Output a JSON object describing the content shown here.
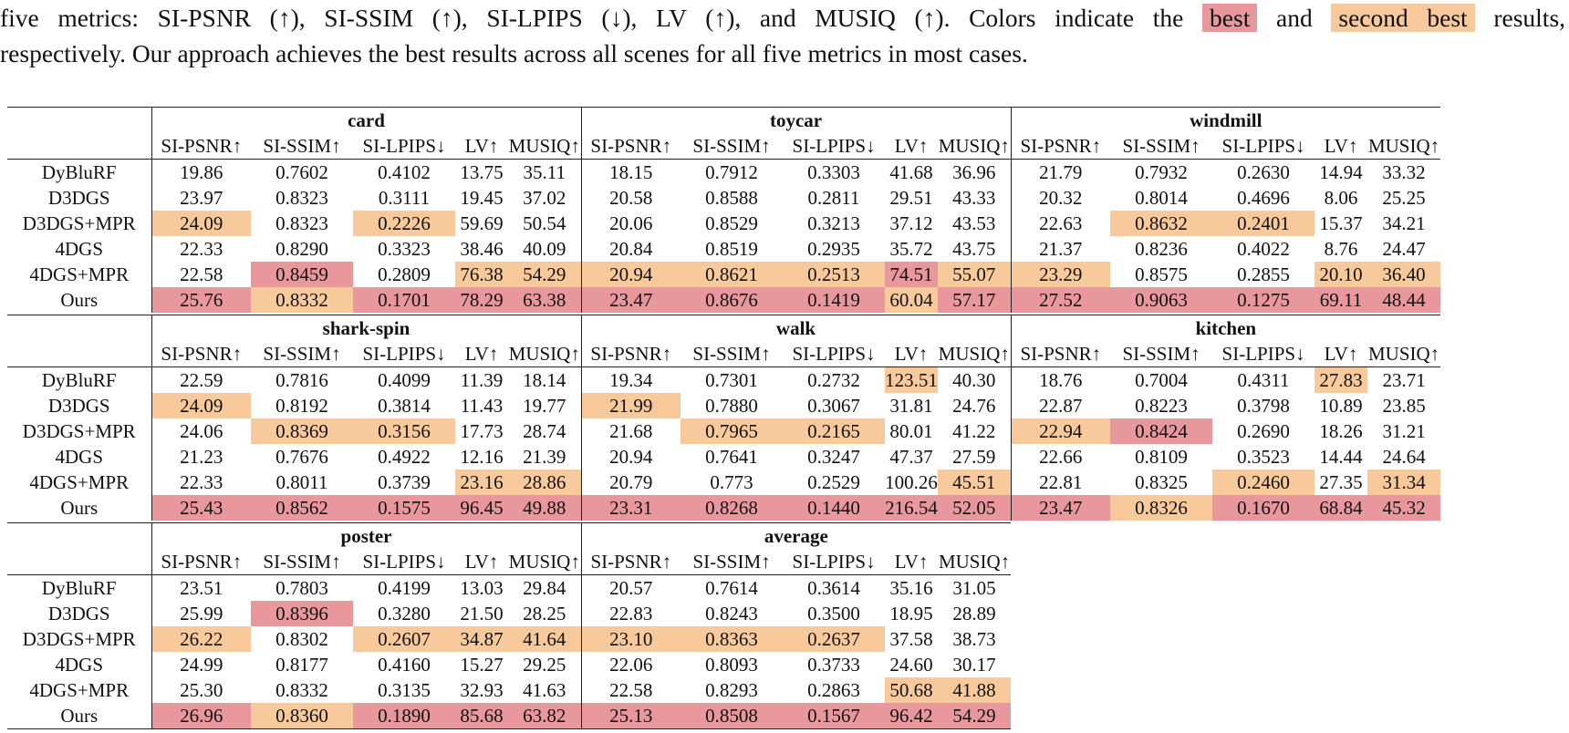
{
  "caption": {
    "line1_pre": "five metrics: SI-PSNR (↑), SI-SSIM (↑), SI-LPIPS (↓), LV (↑), and MUSIQ (↑). Colors indicate the",
    "best_label": "best",
    "and_word": "and",
    "second_label": "second best",
    "line1_post": "results,",
    "line2": "respectively. Our approach achieves the best results across all scenes for all five metrics in most cases."
  },
  "metrics": [
    "SI-PSNR↑",
    "SI-SSIM↑",
    "SI-LPIPS↓",
    "LV↑",
    "MUSIQ↑"
  ],
  "methods": [
    "DyBluRF",
    "D3DGS",
    "D3DGS+MPR",
    "4DGS",
    "4DGS+MPR",
    "Ours"
  ],
  "colors": {
    "best": "#e8979d",
    "second": "#f8c99a"
  },
  "blocks": [
    {
      "scenes": [
        {
          "name": "card",
          "rows": [
            [
              "19.86",
              "0.7602",
              "0.4102",
              "13.75",
              "35.11"
            ],
            [
              "23.97",
              "0.8323",
              "0.3111",
              "19.45",
              "37.02"
            ],
            [
              "24.09",
              "0.8323",
              "0.2226",
              "59.69",
              "50.54"
            ],
            [
              "22.33",
              "0.8290",
              "0.3323",
              "38.46",
              "40.09"
            ],
            [
              "22.58",
              "0.8459",
              "0.2809",
              "76.38",
              "54.29"
            ],
            [
              "25.76",
              "0.8332",
              "0.1701",
              "78.29",
              "63.38"
            ]
          ],
          "hl": [
            [
              "",
              "",
              "",
              "",
              ""
            ],
            [
              "",
              "",
              "",
              "",
              ""
            ],
            [
              "s",
              "",
              "s",
              "",
              ""
            ],
            [
              "",
              "",
              "",
              "",
              ""
            ],
            [
              "",
              "b",
              "",
              "s",
              "s"
            ],
            [
              "b",
              "s",
              "b",
              "b",
              "b"
            ]
          ]
        },
        {
          "name": "toycar",
          "rows": [
            [
              "18.15",
              "0.7912",
              "0.3303",
              "41.68",
              "36.96"
            ],
            [
              "20.58",
              "0.8588",
              "0.2811",
              "29.51",
              "43.33"
            ],
            [
              "20.06",
              "0.8529",
              "0.3213",
              "37.12",
              "43.53"
            ],
            [
              "20.84",
              "0.8519",
              "0.2935",
              "35.72",
              "43.75"
            ],
            [
              "20.94",
              "0.8621",
              "0.2513",
              "74.51",
              "55.07"
            ],
            [
              "23.47",
              "0.8676",
              "0.1419",
              "60.04",
              "57.17"
            ]
          ],
          "hl": [
            [
              "",
              "",
              "",
              "",
              ""
            ],
            [
              "",
              "",
              "",
              "",
              ""
            ],
            [
              "",
              "",
              "",
              "",
              ""
            ],
            [
              "",
              "",
              "",
              "",
              ""
            ],
            [
              "s",
              "s",
              "s",
              "b",
              "s"
            ],
            [
              "b",
              "b",
              "b",
              "s",
              "b"
            ]
          ]
        },
        {
          "name": "windmill",
          "rows": [
            [
              "21.79",
              "0.7932",
              "0.2630",
              "14.94",
              "33.32"
            ],
            [
              "20.32",
              "0.8014",
              "0.4696",
              "8.06",
              "25.25"
            ],
            [
              "22.63",
              "0.8632",
              "0.2401",
              "15.37",
              "34.21"
            ],
            [
              "21.37",
              "0.8236",
              "0.4022",
              "8.76",
              "24.47"
            ],
            [
              "23.29",
              "0.8575",
              "0.2855",
              "20.10",
              "36.40"
            ],
            [
              "27.52",
              "0.9063",
              "0.1275",
              "69.11",
              "48.44"
            ]
          ],
          "hl": [
            [
              "",
              "",
              "",
              "",
              ""
            ],
            [
              "",
              "",
              "",
              "",
              ""
            ],
            [
              "",
              "s",
              "s",
              "",
              ""
            ],
            [
              "",
              "",
              "",
              "",
              ""
            ],
            [
              "s",
              "",
              "",
              "s",
              "s"
            ],
            [
              "b",
              "b",
              "b",
              "b",
              "b"
            ]
          ]
        }
      ]
    },
    {
      "scenes": [
        {
          "name": "shark-spin",
          "rows": [
            [
              "22.59",
              "0.7816",
              "0.4099",
              "11.39",
              "18.14"
            ],
            [
              "24.09",
              "0.8192",
              "0.3814",
              "11.43",
              "19.77"
            ],
            [
              "24.06",
              "0.8369",
              "0.3156",
              "17.73",
              "28.74"
            ],
            [
              "21.23",
              "0.7676",
              "0.4922",
              "12.16",
              "21.39"
            ],
            [
              "22.33",
              "0.8011",
              "0.3739",
              "23.16",
              "28.86"
            ],
            [
              "25.43",
              "0.8562",
              "0.1575",
              "96.45",
              "49.88"
            ]
          ],
          "hl": [
            [
              "",
              "",
              "",
              "",
              ""
            ],
            [
              "s",
              "",
              "",
              "",
              ""
            ],
            [
              "",
              "s",
              "s",
              "",
              ""
            ],
            [
              "",
              "",
              "",
              "",
              ""
            ],
            [
              "",
              "",
              "",
              "s",
              "s"
            ],
            [
              "b",
              "b",
              "b",
              "b",
              "b"
            ]
          ]
        },
        {
          "name": "walk",
          "rows": [
            [
              "19.34",
              "0.7301",
              "0.2732",
              "123.51",
              "40.30"
            ],
            [
              "21.99",
              "0.7880",
              "0.3067",
              "31.81",
              "24.76"
            ],
            [
              "21.68",
              "0.7965",
              "0.2165",
              "80.01",
              "41.22"
            ],
            [
              "20.94",
              "0.7641",
              "0.3247",
              "47.37",
              "27.59"
            ],
            [
              "20.79",
              "0.773",
              "0.2529",
              "100.26",
              "45.51"
            ],
            [
              "23.31",
              "0.8268",
              "0.1440",
              "216.54",
              "52.05"
            ]
          ],
          "hl": [
            [
              "",
              "",
              "",
              "s",
              ""
            ],
            [
              "s",
              "",
              "",
              "",
              ""
            ],
            [
              "",
              "s",
              "s",
              "",
              ""
            ],
            [
              "",
              "",
              "",
              "",
              ""
            ],
            [
              "",
              "",
              "",
              "",
              "s"
            ],
            [
              "b",
              "b",
              "b",
              "b",
              "b"
            ]
          ]
        },
        {
          "name": "kitchen",
          "rows": [
            [
              "18.76",
              "0.7004",
              "0.4311",
              "27.83",
              "23.71"
            ],
            [
              "22.87",
              "0.8223",
              "0.3798",
              "10.89",
              "23.85"
            ],
            [
              "22.94",
              "0.8424",
              "0.2690",
              "18.26",
              "31.21"
            ],
            [
              "22.66",
              "0.8109",
              "0.3523",
              "14.44",
              "24.64"
            ],
            [
              "22.81",
              "0.8325",
              "0.2460",
              "27.35",
              "31.34"
            ],
            [
              "23.47",
              "0.8326",
              "0.1670",
              "68.84",
              "45.32"
            ]
          ],
          "hl": [
            [
              "",
              "",
              "",
              "s",
              ""
            ],
            [
              "",
              "",
              "",
              "",
              ""
            ],
            [
              "s",
              "b",
              "",
              "",
              ""
            ],
            [
              "",
              "",
              "",
              "",
              ""
            ],
            [
              "",
              "",
              "s",
              "",
              "s"
            ],
            [
              "b",
              "s",
              "b",
              "b",
              "b"
            ]
          ]
        }
      ]
    },
    {
      "scenes": [
        {
          "name": "poster",
          "rows": [
            [
              "23.51",
              "0.7803",
              "0.4199",
              "13.03",
              "29.84"
            ],
            [
              "25.99",
              "0.8396",
              "0.3280",
              "21.50",
              "28.25"
            ],
            [
              "26.22",
              "0.8302",
              "0.2607",
              "34.87",
              "41.64"
            ],
            [
              "24.99",
              "0.8177",
              "0.4160",
              "15.27",
              "29.25"
            ],
            [
              "25.30",
              "0.8332",
              "0.3135",
              "32.93",
              "41.63"
            ],
            [
              "26.96",
              "0.8360",
              "0.1890",
              "85.68",
              "63.82"
            ]
          ],
          "hl": [
            [
              "",
              "",
              "",
              "",
              ""
            ],
            [
              "",
              "b",
              "",
              "",
              ""
            ],
            [
              "s",
              "",
              "s",
              "s",
              "s"
            ],
            [
              "",
              "",
              "",
              "",
              ""
            ],
            [
              "",
              "",
              "",
              "",
              ""
            ],
            [
              "b",
              "s",
              "b",
              "b",
              "b"
            ]
          ]
        },
        {
          "name": "average",
          "rows": [
            [
              "20.57",
              "0.7614",
              "0.3614",
              "35.16",
              "31.05"
            ],
            [
              "22.83",
              "0.8243",
              "0.3500",
              "18.95",
              "28.89"
            ],
            [
              "23.10",
              "0.8363",
              "0.2637",
              "37.58",
              "38.73"
            ],
            [
              "22.06",
              "0.8093",
              "0.3733",
              "24.60",
              "30.17"
            ],
            [
              "22.58",
              "0.8293",
              "0.2863",
              "50.68",
              "41.88"
            ],
            [
              "25.13",
              "0.8508",
              "0.1567",
              "96.42",
              "54.29"
            ]
          ],
          "hl": [
            [
              "",
              "",
              "",
              "",
              ""
            ],
            [
              "",
              "",
              "",
              "",
              ""
            ],
            [
              "s",
              "s",
              "s",
              "",
              ""
            ],
            [
              "",
              "",
              "",
              "",
              ""
            ],
            [
              "",
              "",
              "",
              "s",
              "s"
            ],
            [
              "b",
              "b",
              "b",
              "b",
              "b"
            ]
          ]
        }
      ]
    }
  ]
}
